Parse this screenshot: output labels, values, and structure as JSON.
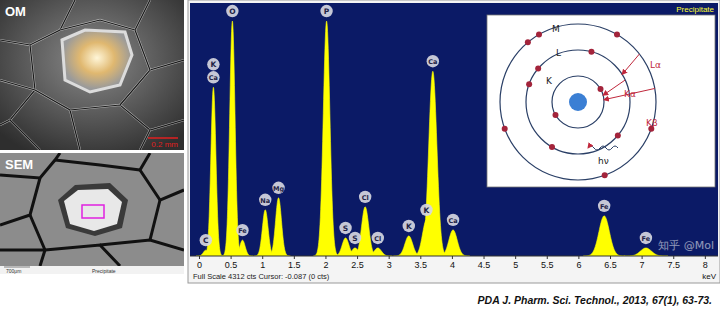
{
  "photos": {
    "om": {
      "label": "OM",
      "scale_bar": "0.2 mm"
    },
    "sem": {
      "label": "SEM",
      "scale_bar": "700μm",
      "caption": "Precipitate"
    }
  },
  "chart_data": {
    "type": "spectrum",
    "title": "Precipitate",
    "x_label": "keV",
    "footer": "Full Scale 4312 cts Cursor: -0.087 (0 cts)",
    "xlim": [
      -0.15,
      8.2
    ],
    "xticks": [
      0,
      0.5,
      1,
      1.5,
      2,
      2.5,
      3,
      3.5,
      4,
      4.5,
      5,
      5.5,
      6,
      6.5,
      7,
      7.5,
      8
    ],
    "ylim": [
      0,
      4312
    ],
    "tick_labels": "x",
    "color": "#ffff00",
    "peaks": [
      {
        "energy": 0.1,
        "counts": 100,
        "labels": [
          "C"
        ]
      },
      {
        "energy": 0.22,
        "counts": 2875,
        "labels": [
          "K",
          "Ca"
        ]
      },
      {
        "energy": 0.52,
        "counts": 4004,
        "labels": [
          "O"
        ]
      },
      {
        "energy": 0.68,
        "counts": 270,
        "labels": [
          "Fe"
        ]
      },
      {
        "energy": 1.04,
        "counts": 787,
        "labels": [
          "Na"
        ]
      },
      {
        "energy": 1.25,
        "counts": 992,
        "labels": [
          "Mg"
        ]
      },
      {
        "energy": 2.01,
        "counts": 4004,
        "labels": [
          "P"
        ]
      },
      {
        "energy": 2.31,
        "counts": 308,
        "labels": [
          "S"
        ]
      },
      {
        "energy": 2.46,
        "counts": 137,
        "labels": [
          "S"
        ]
      },
      {
        "energy": 2.62,
        "counts": 838,
        "labels": [
          "Cl"
        ]
      },
      {
        "energy": 2.82,
        "counts": 137,
        "labels": [
          "Cl"
        ]
      },
      {
        "energy": 3.31,
        "counts": 342,
        "labels": [
          "K"
        ]
      },
      {
        "energy": 3.59,
        "counts": 616,
        "labels": [
          "K"
        ]
      },
      {
        "energy": 3.69,
        "counts": 3149,
        "labels": [
          "Ca"
        ]
      },
      {
        "energy": 4.01,
        "counts": 445,
        "labels": [
          "Ca"
        ]
      },
      {
        "energy": 6.4,
        "counts": 684,
        "labels": [
          "Fe"
        ]
      },
      {
        "energy": 7.06,
        "counts": 137,
        "labels": [
          "Fe"
        ]
      }
    ]
  },
  "inset": {
    "shells": [
      "K",
      "L",
      "M"
    ],
    "transitions": [
      "Kα",
      "Kβ",
      "Lα"
    ],
    "photon": "hν"
  },
  "citation": "PDA J. Pharm. Sci. Technol., 2013, 67(1), 63-73.",
  "watermark": "知乎 @Mol"
}
